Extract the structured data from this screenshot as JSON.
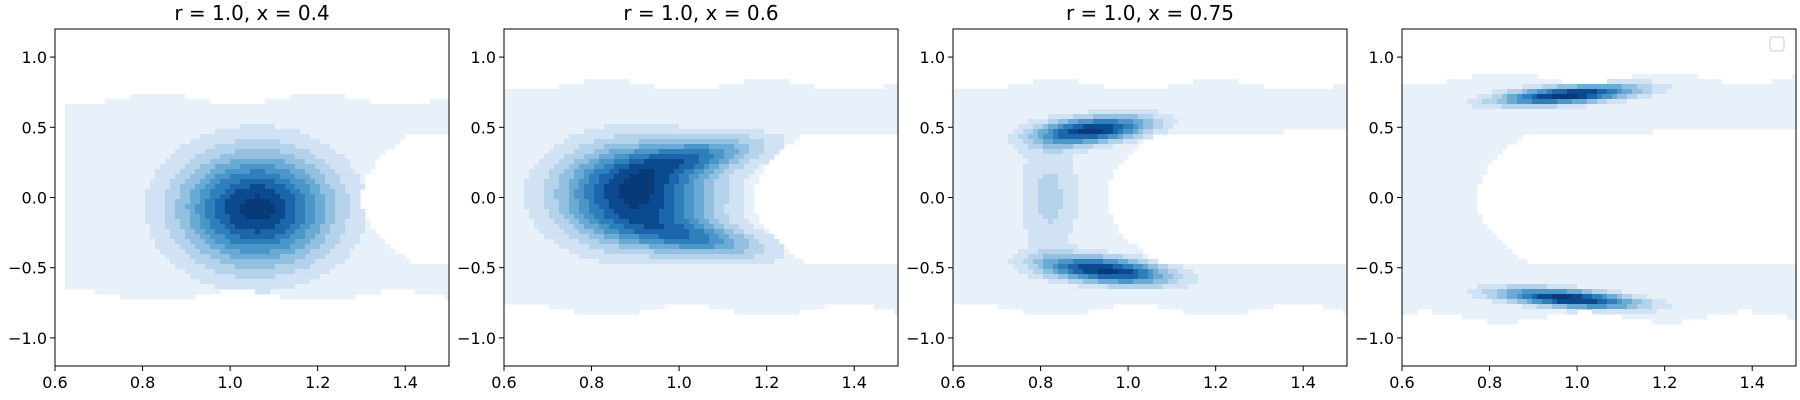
{
  "chart_data": [
    {
      "type": "heatmap",
      "subtype": "kde-filled-contour",
      "title": "r = 1.0, x = 0.4",
      "xlabel": "",
      "ylabel": "",
      "xlim": [
        0.6,
        1.5
      ],
      "ylim": [
        -1.2,
        1.2
      ],
      "xticks": [
        "0.6",
        "0.8",
        "1.0",
        "1.2",
        "1.4"
      ],
      "yticks": [
        "1.0",
        "0.5",
        "0.0",
        "−0.5",
        "−1.0"
      ],
      "grid": false,
      "legend": null,
      "density_modes": [
        {
          "x": 1.06,
          "y": -0.08,
          "sx": 0.12,
          "sy": 0.28,
          "rho": 0.0,
          "weight": 1.0
        }
      ],
      "support": {
        "x_min": 0.62,
        "x_max": 1.5,
        "inner_cutout_x": 1.3,
        "y_outer": 0.7
      }
    },
    {
      "type": "heatmap",
      "subtype": "kde-filled-contour",
      "title": "r = 1.0, x = 0.6",
      "xlabel": "",
      "ylabel": "",
      "xlim": [
        0.6,
        1.5
      ],
      "ylim": [
        -1.2,
        1.2
      ],
      "xticks": [
        "0.6",
        "0.8",
        "1.0",
        "1.2",
        "1.4"
      ],
      "yticks": [
        "1.0",
        "0.5",
        "0.0",
        "−0.5",
        "−1.0"
      ],
      "grid": false,
      "legend": null,
      "density_modes": [
        {
          "x": 0.9,
          "y": 0.02,
          "sx": 0.12,
          "sy": 0.24,
          "rho": 0.0,
          "weight": 1.0
        },
        {
          "x": 1.05,
          "y": 0.3,
          "sx": 0.11,
          "sy": 0.1,
          "rho": 0.5,
          "weight": 0.5
        },
        {
          "x": 1.05,
          "y": -0.3,
          "sx": 0.11,
          "sy": 0.1,
          "rho": -0.5,
          "weight": 0.5
        }
      ],
      "support": {
        "x_min": 0.6,
        "x_max": 1.5,
        "inner_cutout_x": 1.17,
        "y_outer": 0.8
      }
    },
    {
      "type": "heatmap",
      "subtype": "kde-filled-contour",
      "title": "r = 1.0, x = 0.75",
      "xlabel": "",
      "ylabel": "",
      "xlim": [
        0.6,
        1.5
      ],
      "ylim": [
        -1.2,
        1.2
      ],
      "xticks": [
        "0.6",
        "0.8",
        "1.0",
        "1.2",
        "1.4"
      ],
      "yticks": [
        "1.0",
        "0.5",
        "0.0",
        "−0.5",
        "−1.0"
      ],
      "grid": false,
      "legend": null,
      "density_modes": [
        {
          "x": 0.92,
          "y": 0.48,
          "sx": 0.09,
          "sy": 0.07,
          "rho": 0.4,
          "weight": 1.0
        },
        {
          "x": 0.95,
          "y": -0.52,
          "sx": 0.1,
          "sy": 0.07,
          "rho": -0.4,
          "weight": 1.0
        },
        {
          "x": 0.82,
          "y": 0.0,
          "sx": 0.05,
          "sy": 0.3,
          "rho": 0.0,
          "weight": 0.25
        }
      ],
      "support": {
        "x_min": 0.6,
        "x_max": 1.5,
        "inner_cutout_x": 0.95,
        "y_outer": 0.8
      }
    },
    {
      "type": "heatmap",
      "subtype": "kde-filled-contour",
      "title": "",
      "xlabel": "",
      "ylabel": "",
      "xlim": [
        0.6,
        1.5
      ],
      "ylim": [
        -1.2,
        1.2
      ],
      "xticks": [
        "0.6",
        "0.8",
        "1.0",
        "1.2",
        "1.4"
      ],
      "yticks": [
        "1.0",
        "0.5",
        "0.0",
        "−0.5",
        "−1.0"
      ],
      "grid": false,
      "legend": {
        "placement": "top-right",
        "entries": []
      },
      "density_modes": [
        {
          "x": 0.98,
          "y": 0.73,
          "sx": 0.11,
          "sy": 0.05,
          "rho": 0.5,
          "weight": 1.0
        },
        {
          "x": 0.98,
          "y": -0.72,
          "sx": 0.11,
          "sy": 0.05,
          "rho": -0.5,
          "weight": 1.0
        }
      ],
      "support": {
        "x_min": 0.6,
        "x_max": 1.5,
        "inner_cutout_x": 0.77,
        "y_outer": 0.85
      }
    }
  ],
  "colors": {
    "palette": [
      "#ffffff",
      "#e8f1fa",
      "#d0e2f3",
      "#b4d3ea",
      "#93c0e0",
      "#6aabd5",
      "#4a96c9",
      "#2f7fbd",
      "#1b65aa",
      "#0b4a8f",
      "#083a78"
    ]
  }
}
